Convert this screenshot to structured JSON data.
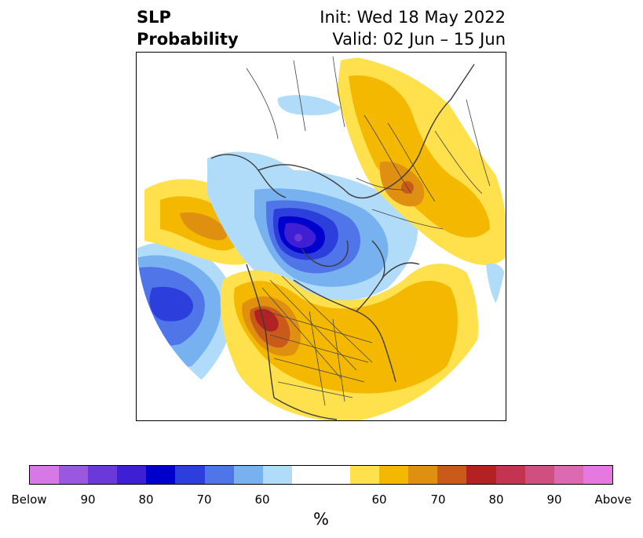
{
  "title": {
    "left_line1": "SLP",
    "left_line2": "Probability",
    "right_line1": "Init: Wed 18 May 2022",
    "right_line2": "Valid: 02 Jun – 15 Jun"
  },
  "colorbar": {
    "unit": "%",
    "colors": [
      "#d679e6",
      "#9a57e0",
      "#6a39d8",
      "#3f1fd4",
      "#0000cd",
      "#2c3fdc",
      "#4f75e8",
      "#78b1f0",
      "#b0dcfa",
      "#ffffff",
      "#ffe14d",
      "#f5b800",
      "#e09010",
      "#c95a1a",
      "#b22222",
      "#c2344f",
      "#cf4f80",
      "#dc6ab0",
      "#e679df"
    ],
    "tick_labels": [
      "Below",
      "90",
      "80",
      "70",
      "60",
      "60",
      "70",
      "80",
      "90",
      "Above"
    ]
  },
  "map": {
    "projection": "polar stereographic, Northern Hemisphere",
    "colors": {
      "land_outline": "#3c3c3c",
      "border": "#444444"
    }
  }
}
